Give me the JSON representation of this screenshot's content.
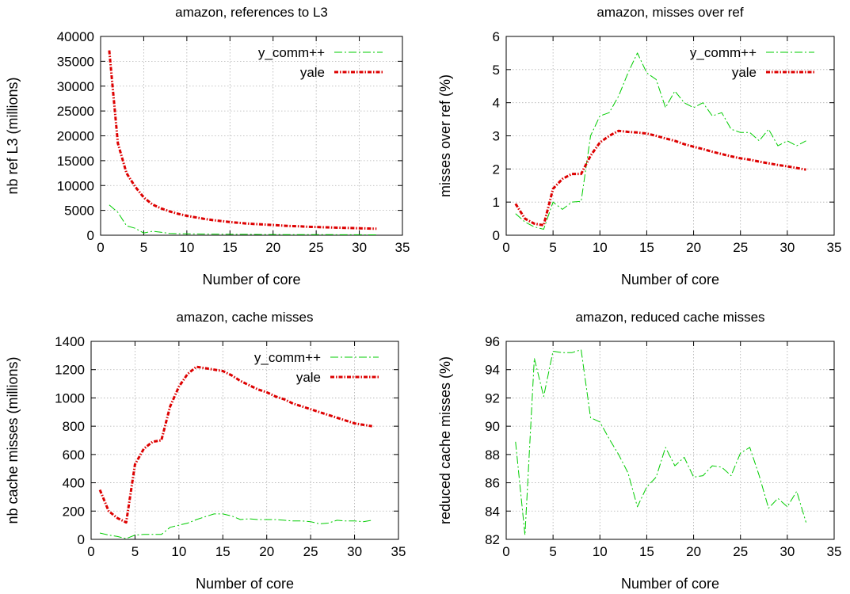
{
  "chart_data": [
    {
      "type": "line",
      "title": "amazon, references to L3",
      "xlabel": "Number of core",
      "ylabel": "nb ref L3 (millions)",
      "xlim": [
        0,
        35
      ],
      "ylim": [
        0,
        40000
      ],
      "xticks": [
        0,
        5,
        10,
        15,
        20,
        25,
        30,
        35
      ],
      "yticks": [
        0,
        5000,
        10000,
        15000,
        20000,
        25000,
        30000,
        35000,
        40000
      ],
      "grid": true,
      "legend_position": "top-right",
      "series": [
        {
          "name": "y_comm++",
          "color": "#00cc00",
          "x": [
            1,
            2,
            3,
            4,
            5,
            6,
            7,
            8,
            9,
            10,
            11,
            12,
            13,
            14,
            15,
            16,
            17,
            18,
            19,
            20,
            21,
            22,
            23,
            24,
            25,
            26,
            27,
            28,
            29,
            30,
            31,
            32
          ],
          "values": [
            6100,
            4600,
            1900,
            1400,
            450,
            800,
            600,
            350,
            300,
            280,
            260,
            240,
            220,
            200,
            190,
            180,
            170,
            160,
            150,
            140,
            135,
            130,
            125,
            120,
            115,
            110,
            105,
            100,
            95,
            90,
            85,
            80
          ]
        },
        {
          "name": "yale",
          "color": "#dd0000",
          "x": [
            1,
            2,
            3,
            4,
            5,
            6,
            7,
            8,
            9,
            10,
            11,
            12,
            13,
            14,
            15,
            16,
            17,
            18,
            19,
            20,
            21,
            22,
            23,
            24,
            25,
            26,
            27,
            28,
            29,
            30,
            31,
            32
          ],
          "values": [
            37200,
            18500,
            12500,
            9800,
            7600,
            6200,
            5400,
            4800,
            4300,
            3900,
            3600,
            3300,
            3050,
            2850,
            2650,
            2500,
            2350,
            2250,
            2150,
            2050,
            1950,
            1850,
            1800,
            1700,
            1650,
            1600,
            1550,
            1500,
            1450,
            1400,
            1350,
            1300
          ]
        }
      ]
    },
    {
      "type": "line",
      "title": "amazon, misses over ref",
      "xlabel": "Number of core",
      "ylabel": "misses over ref (%)",
      "xlim": [
        0,
        35
      ],
      "ylim": [
        0,
        6
      ],
      "xticks": [
        0,
        5,
        10,
        15,
        20,
        25,
        30,
        35
      ],
      "yticks": [
        0,
        1,
        2,
        3,
        4,
        5,
        6
      ],
      "grid": true,
      "legend_position": "top-right",
      "series": [
        {
          "name": "y_comm++",
          "color": "#00cc00",
          "x": [
            1,
            2,
            3,
            4,
            5,
            6,
            7,
            8,
            9,
            10,
            11,
            12,
            13,
            14,
            15,
            16,
            17,
            18,
            19,
            20,
            21,
            22,
            23,
            24,
            25,
            26,
            27,
            28,
            29,
            30,
            31,
            32
          ],
          "values": [
            0.65,
            0.4,
            0.25,
            0.18,
            1.0,
            0.78,
            1.0,
            1.02,
            3.0,
            3.6,
            3.7,
            4.2,
            4.9,
            5.5,
            4.9,
            4.7,
            3.85,
            4.35,
            4.0,
            3.85,
            4.0,
            3.6,
            3.7,
            3.2,
            3.1,
            3.1,
            2.85,
            3.2,
            2.7,
            2.85,
            2.7,
            2.85
          ]
        },
        {
          "name": "yale",
          "color": "#dd0000",
          "x": [
            1,
            2,
            3,
            4,
            5,
            6,
            7,
            8,
            9,
            10,
            11,
            12,
            13,
            14,
            15,
            16,
            17,
            18,
            19,
            20,
            21,
            22,
            23,
            24,
            25,
            26,
            27,
            28,
            29,
            30,
            31,
            32
          ],
          "values": [
            0.95,
            0.5,
            0.35,
            0.3,
            1.4,
            1.7,
            1.85,
            1.85,
            2.4,
            2.8,
            3.0,
            3.15,
            3.12,
            3.1,
            3.07,
            3.0,
            2.92,
            2.85,
            2.75,
            2.67,
            2.6,
            2.52,
            2.45,
            2.38,
            2.32,
            2.28,
            2.22,
            2.17,
            2.12,
            2.08,
            2.03,
            1.98
          ]
        }
      ]
    },
    {
      "type": "line",
      "title": "amazon, cache misses",
      "xlabel": "Number of core",
      "ylabel": "nb cache misses (millions)",
      "xlim": [
        0,
        35
      ],
      "ylim": [
        0,
        1400
      ],
      "xticks": [
        0,
        5,
        10,
        15,
        20,
        25,
        30,
        35
      ],
      "yticks": [
        0,
        200,
        400,
        600,
        800,
        1000,
        1200,
        1400
      ],
      "grid": true,
      "legend_position": "top-right",
      "series": [
        {
          "name": "y_comm++",
          "color": "#00cc00",
          "x": [
            1,
            2,
            3,
            4,
            5,
            6,
            7,
            8,
            9,
            10,
            11,
            12,
            13,
            14,
            15,
            16,
            17,
            18,
            19,
            20,
            21,
            22,
            23,
            24,
            25,
            26,
            27,
            28,
            29,
            30,
            31,
            32
          ],
          "values": [
            45,
            30,
            20,
            5,
            30,
            35,
            35,
            35,
            85,
            100,
            115,
            140,
            160,
            180,
            180,
            165,
            140,
            145,
            140,
            140,
            140,
            135,
            130,
            130,
            125,
            110,
            115,
            135,
            130,
            130,
            125,
            135
          ]
        },
        {
          "name": "yale",
          "color": "#dd0000",
          "x": [
            1,
            2,
            3,
            4,
            5,
            6,
            7,
            8,
            9,
            10,
            11,
            12,
            13,
            14,
            15,
            16,
            17,
            18,
            19,
            20,
            21,
            22,
            23,
            24,
            25,
            26,
            27,
            28,
            29,
            30,
            31,
            32
          ],
          "values": [
            350,
            200,
            150,
            120,
            530,
            640,
            690,
            700,
            940,
            1080,
            1170,
            1220,
            1210,
            1200,
            1190,
            1160,
            1120,
            1090,
            1060,
            1040,
            1010,
            990,
            960,
            940,
            920,
            900,
            880,
            860,
            840,
            820,
            810,
            800
          ]
        }
      ]
    },
    {
      "type": "line",
      "title": "amazon, reduced cache misses",
      "xlabel": "Number of core",
      "ylabel": "reduced cache misses (%)",
      "xlim": [
        0,
        35
      ],
      "ylim": [
        82,
        96
      ],
      "xticks": [
        0,
        5,
        10,
        15,
        20,
        25,
        30,
        35
      ],
      "yticks": [
        82,
        84,
        86,
        88,
        90,
        92,
        94,
        96
      ],
      "grid": true,
      "legend_position": "",
      "series": [
        {
          "name": "",
          "color": "#00cc00",
          "x": [
            1,
            2,
            3,
            4,
            5,
            6,
            7,
            8,
            9,
            10,
            11,
            12,
            13,
            14,
            15,
            16,
            17,
            18,
            19,
            20,
            21,
            22,
            23,
            24,
            25,
            26,
            27,
            28,
            29,
            30,
            31,
            32
          ],
          "values": [
            88.9,
            82.3,
            94.8,
            92.1,
            95.3,
            95.2,
            95.2,
            95.4,
            90.6,
            90.3,
            89.1,
            88.0,
            86.7,
            84.3,
            85.7,
            86.4,
            88.5,
            87.2,
            87.8,
            86.4,
            86.5,
            87.2,
            87.1,
            86.5,
            88.1,
            88.5,
            86.5,
            84.2,
            84.9,
            84.3,
            85.4,
            83.2
          ]
        }
      ]
    }
  ]
}
